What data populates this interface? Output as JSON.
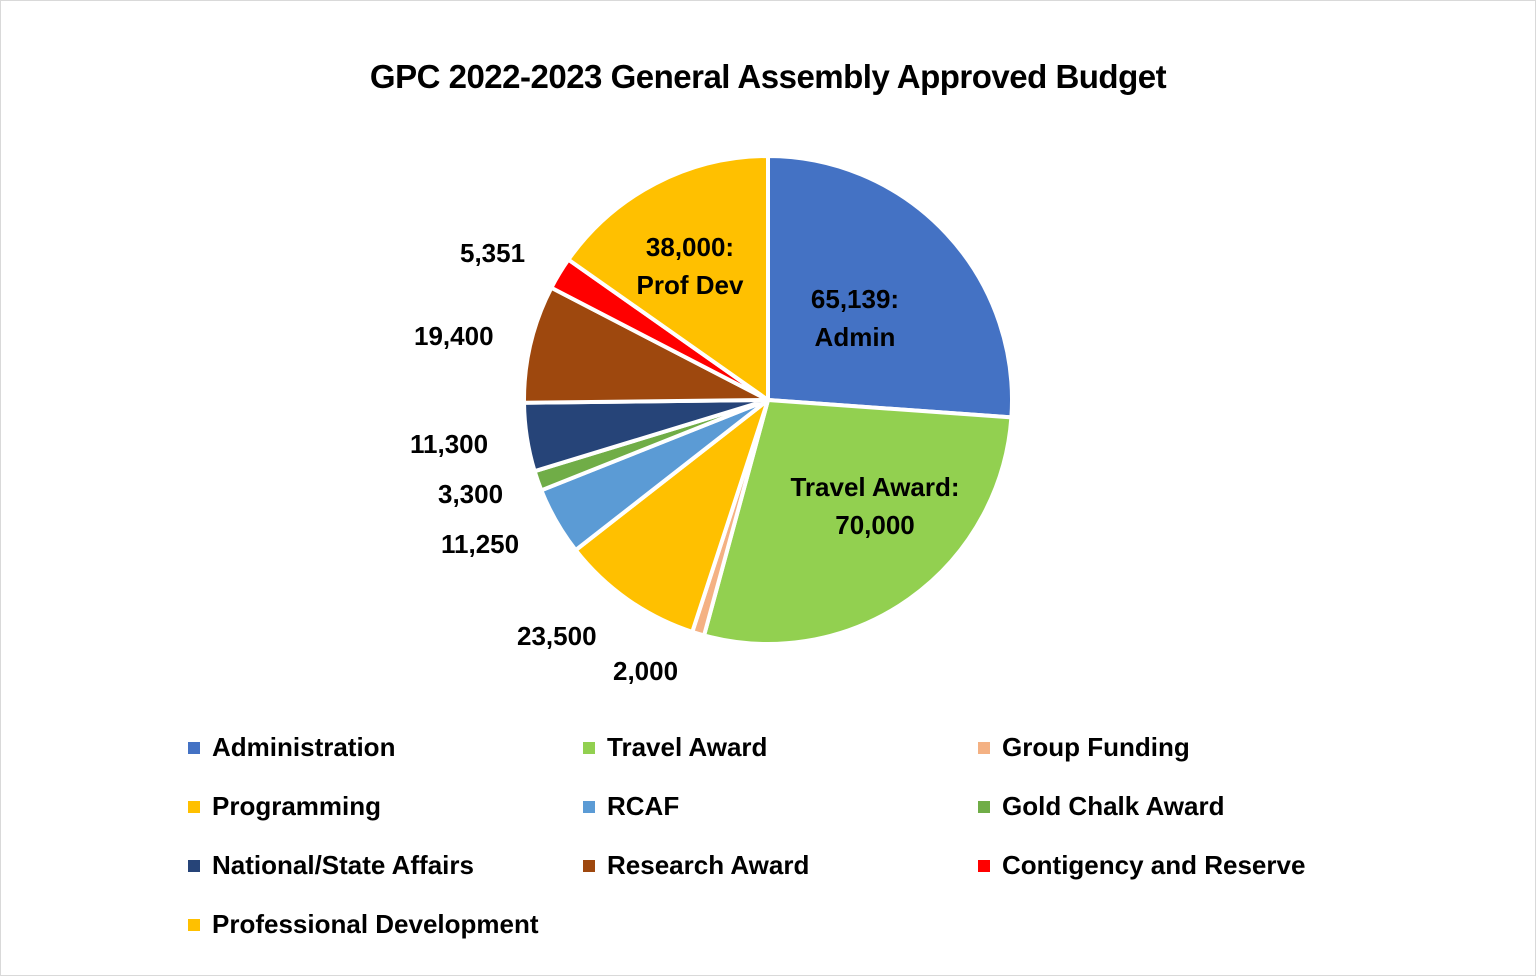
{
  "chart_data": {
    "type": "pie",
    "title": "GPC 2022-2023 General Assembly Approved Budget",
    "start_angle": "12 o'clock, clockwise",
    "categories": [
      "Administration",
      "Travel Award",
      "Group Funding",
      "Programming",
      "RCAF",
      "Gold Chalk Award",
      "National/State Affairs",
      "Research Award",
      "Contigency and Reserve",
      "Professional Development"
    ],
    "values": [
      65139,
      70000,
      2000,
      23500,
      11250,
      3300,
      11300,
      19400,
      5351,
      38000
    ],
    "colors": [
      "#4472C4",
      "#92D050",
      "#F4B183",
      "#FFC000",
      "#5B9BD5",
      "#70AD47",
      "#264478",
      "#9E480E",
      "#FF0000",
      "#FFC000"
    ],
    "data_labels": [
      "65,139:\nAdmin",
      "Travel Award:\n70,000",
      "2,000",
      "23,500",
      "11,250",
      "3,300",
      "11,300",
      "19,400",
      "5,351",
      "38,000:\nProf Dev"
    ],
    "legend_position": "bottom",
    "total": 249240
  },
  "title": "GPC 2022-2023 General Assembly Approved Budget",
  "labels": {
    "admin_l1": "65,139:",
    "admin_l2": "Admin",
    "travel_l1": "Travel Award:",
    "travel_l2": "70,000",
    "group": "2,000",
    "programming": "23,500",
    "rcaf": "11,250",
    "gold": "3,300",
    "national": "11,300",
    "research": "19,400",
    "contingency": "5,351",
    "profdev_l1": "38,000:",
    "profdev_l2": "Prof Dev"
  },
  "legend": [
    {
      "label": "Administration",
      "color": "#4472C4"
    },
    {
      "label": "Travel Award",
      "color": "#92D050"
    },
    {
      "label": "Group Funding",
      "color": "#F4B183"
    },
    {
      "label": "Programming",
      "color": "#FFC000"
    },
    {
      "label": "RCAF",
      "color": "#5B9BD5"
    },
    {
      "label": "Gold Chalk Award",
      "color": "#70AD47"
    },
    {
      "label": "National/State Affairs",
      "color": "#264478"
    },
    {
      "label": "Research Award",
      "color": "#9E480E"
    },
    {
      "label": "Contigency and Reserve",
      "color": "#FF0000"
    },
    {
      "label": "Professional Development",
      "color": "#FFC000"
    }
  ]
}
